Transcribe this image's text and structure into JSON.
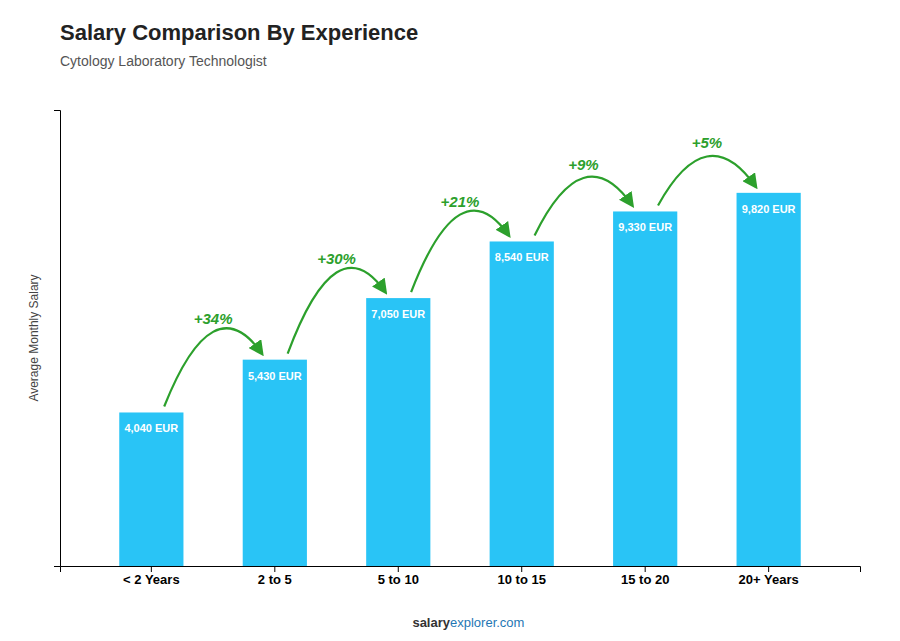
{
  "chart_data": {
    "type": "bar",
    "title": "Salary Comparison By Experience",
    "subtitle": "Cytology Laboratory Technologist",
    "ylabel": "Average Monthly Salary",
    "categories": [
      "< 2 Years",
      "2 to 5",
      "5 to 10",
      "10 to 15",
      "15 to 20",
      "20+ Years"
    ],
    "values": [
      4040,
      5430,
      7050,
      8540,
      9330,
      9820
    ],
    "value_labels": [
      "4,040 EUR",
      "5,430 EUR",
      "7,050 EUR",
      "8,540 EUR",
      "9,330 EUR",
      "9,820 EUR"
    ],
    "data_labels": true,
    "color": "#29c4f6",
    "ylim": [
      0,
      12000
    ],
    "grid": false,
    "tick_labels": "x",
    "annotations": [
      "+34%",
      "+30%",
      "+21%",
      "+9%",
      "+5%"
    ],
    "watermark": [
      "salary",
      "explorer.com"
    ]
  }
}
